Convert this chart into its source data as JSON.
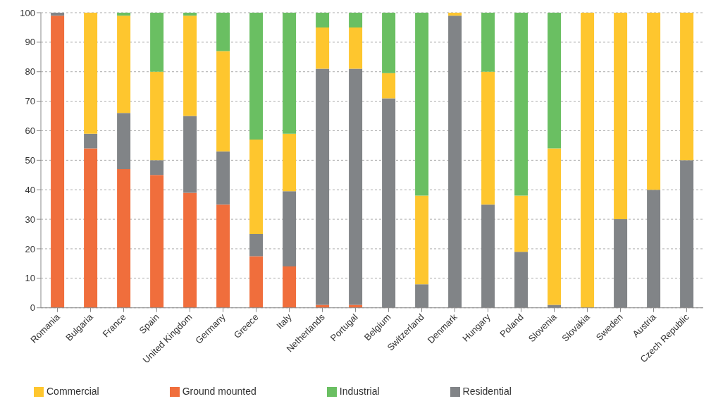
{
  "chart_data": {
    "type": "bar",
    "stacked": true,
    "categories": [
      "Romania",
      "Bulgaria",
      "France",
      "Spain",
      "United Kingdom",
      "Germany",
      "Greece",
      "Italy",
      "Netherlands",
      "Portugal",
      "Belgium",
      "Switzerland",
      "Denmark",
      "Hungary",
      "Poland",
      "Slovenia",
      "Slovakia",
      "Sweden",
      "Austria",
      "Czech Republic"
    ],
    "series": [
      {
        "name": "Ground mounted",
        "color": "#f06e3c",
        "values": [
          99,
          54,
          47,
          45,
          39,
          35,
          17.5,
          14,
          1,
          1,
          0,
          0,
          0,
          0,
          0,
          0,
          0,
          0,
          0,
          0
        ]
      },
      {
        "name": "Residential",
        "color": "#818487",
        "values": [
          1,
          5,
          19,
          5,
          26,
          18,
          7.5,
          25.5,
          80,
          80,
          71,
          8,
          99,
          35,
          19,
          1,
          0,
          30,
          40,
          50
        ]
      },
      {
        "name": "Commercial",
        "color": "#fec62e",
        "values": [
          0,
          41,
          33,
          30,
          34,
          34,
          32,
          19.5,
          14,
          14,
          8.5,
          30,
          1,
          45,
          19,
          53,
          100,
          70,
          60,
          50
        ]
      },
      {
        "name": "Industrial",
        "color": "#6abf62",
        "values": [
          0,
          0,
          1,
          20,
          1,
          13,
          43,
          41,
          5,
          5,
          20.5,
          62,
          0,
          20,
          62,
          46,
          0,
          0,
          0,
          0
        ]
      }
    ],
    "ylim": [
      0,
      100
    ],
    "yticks": [
      0,
      10,
      20,
      30,
      40,
      50,
      60,
      70,
      80,
      90,
      100
    ],
    "grid": "y",
    "legend": "bottom"
  }
}
